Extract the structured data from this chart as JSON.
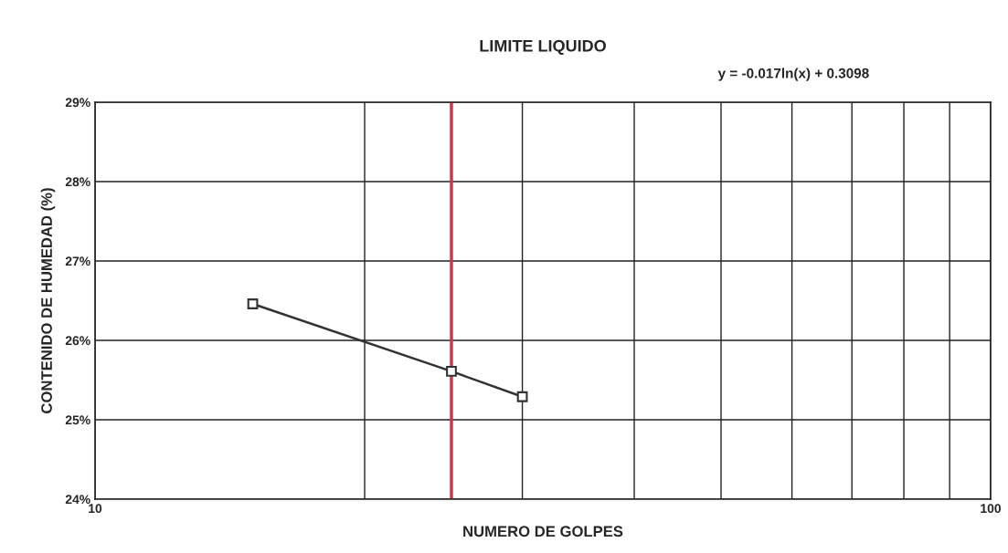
{
  "chart_data": {
    "type": "line",
    "title": "LIMITE LIQUIDO",
    "xlabel": "NUMERO DE GOLPES",
    "ylabel": "CONTENIDO DE HUMEDAD (%)",
    "annotations": [
      "y = -0.017ln(x) + 0.3098"
    ],
    "x": [
      15,
      25,
      30
    ],
    "series": [
      {
        "color": "#333333",
        "values": [
          26.46,
          25.61,
          25.29
        ]
      }
    ],
    "marker": "square",
    "line_style": "solid",
    "log": "x",
    "grid": true,
    "xlim": [
      10,
      100
    ],
    "xticks": [
      10,
      {
        "value": 20,
        "label": null
      },
      {
        "value": 30,
        "label": null
      },
      {
        "value": 40,
        "label": null
      },
      {
        "value": 50,
        "label": null
      },
      {
        "value": 60,
        "label": null
      },
      {
        "value": 70,
        "label": null
      },
      {
        "value": 80,
        "label": null
      },
      {
        "value": 90,
        "label": null
      },
      100
    ],
    "ylim": [
      24,
      29
    ],
    "yticks": [
      {
        "value": 24,
        "label": "24%"
      },
      {
        "value": 25,
        "label": "25%"
      },
      {
        "value": 26,
        "label": "26%"
      },
      {
        "value": 27,
        "label": "27%"
      },
      {
        "value": 28,
        "label": "28%"
      },
      {
        "value": 29,
        "label": "29%"
      }
    ],
    "ref_lines": [
      {
        "axis": "x",
        "value": 25,
        "color": "#c8394b",
        "line_style": "solid"
      }
    ]
  }
}
